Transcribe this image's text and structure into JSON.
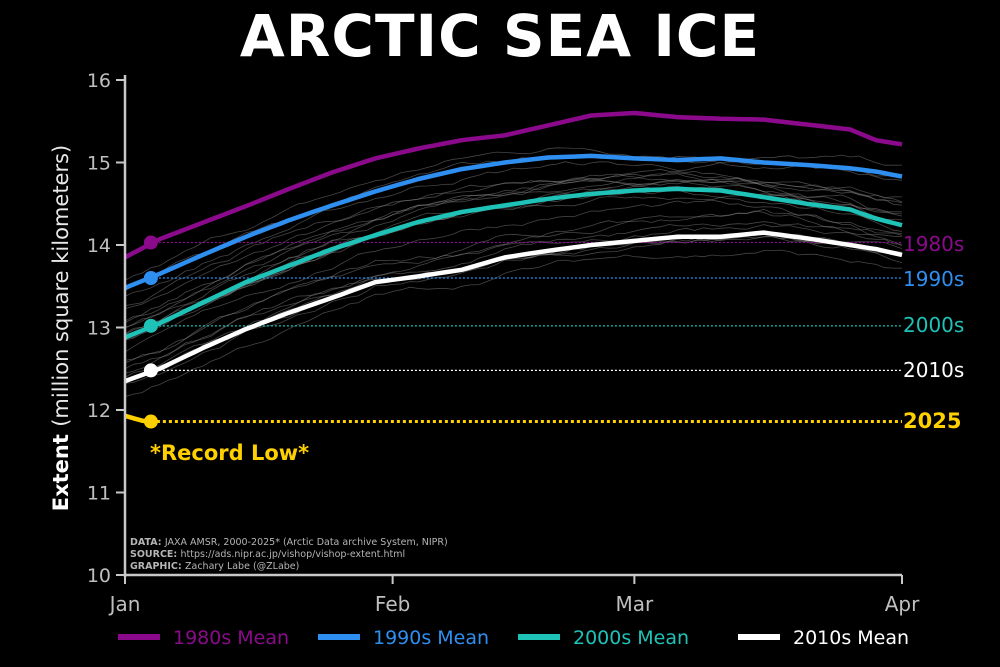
{
  "title": "ARCTIC SEA ICE",
  "chart_data": {
    "type": "line",
    "title": "ARCTIC SEA ICE",
    "ylabel_bold": "Extent",
    "ylabel_rest": "(million square kilometers)",
    "ylim": [
      10,
      16
    ],
    "yticks": [
      10,
      11,
      12,
      13,
      14,
      15,
      16
    ],
    "xlim": [
      1,
      91
    ],
    "xticks": [
      {
        "day": 1,
        "label": "Jan"
      },
      {
        "day": 32,
        "label": "Feb"
      },
      {
        "day": 60,
        "label": "Mar"
      },
      {
        "day": 91,
        "label": "Apr"
      }
    ],
    "series": [
      {
        "name": "1980s Mean",
        "end_label": "1980s",
        "color": "#8b0a8b",
        "ref_value": 14.03,
        "marker_day": 4,
        "x": [
          1,
          5,
          10,
          15,
          20,
          25,
          30,
          35,
          40,
          45,
          50,
          55,
          60,
          65,
          70,
          75,
          80,
          85,
          88,
          91
        ],
        "y": [
          13.85,
          14.07,
          14.27,
          14.47,
          14.68,
          14.88,
          15.05,
          15.17,
          15.27,
          15.33,
          15.45,
          15.57,
          15.6,
          15.55,
          15.53,
          15.52,
          15.46,
          15.4,
          15.27,
          15.22
        ]
      },
      {
        "name": "1990s Mean",
        "end_label": "1990s",
        "color": "#2f8ff0",
        "ref_value": 13.6,
        "marker_day": 4,
        "x": [
          1,
          5,
          10,
          15,
          20,
          25,
          30,
          35,
          40,
          45,
          50,
          55,
          60,
          65,
          70,
          75,
          80,
          85,
          88,
          91
        ],
        "y": [
          13.48,
          13.65,
          13.88,
          14.1,
          14.3,
          14.48,
          14.65,
          14.8,
          14.92,
          15.0,
          15.06,
          15.08,
          15.05,
          15.03,
          15.05,
          15.0,
          14.97,
          14.93,
          14.89,
          14.83
        ]
      },
      {
        "name": "2000s Mean",
        "end_label": "2000s",
        "color": "#1ec2b7",
        "ref_value": 13.02,
        "marker_day": 4,
        "x": [
          1,
          5,
          10,
          15,
          20,
          25,
          30,
          35,
          40,
          45,
          50,
          55,
          60,
          65,
          70,
          75,
          80,
          85,
          88,
          91
        ],
        "y": [
          12.88,
          13.05,
          13.3,
          13.55,
          13.75,
          13.95,
          14.12,
          14.28,
          14.4,
          14.48,
          14.56,
          14.62,
          14.66,
          14.68,
          14.66,
          14.58,
          14.5,
          14.43,
          14.32,
          14.24
        ]
      },
      {
        "name": "2010s Mean",
        "end_label": "2010s",
        "color": "#ffffff",
        "ref_value": 12.48,
        "marker_day": 4,
        "x": [
          1,
          5,
          10,
          15,
          20,
          25,
          30,
          35,
          40,
          45,
          50,
          55,
          60,
          65,
          70,
          75,
          80,
          85,
          88,
          91
        ],
        "y": [
          12.35,
          12.5,
          12.75,
          12.98,
          13.18,
          13.36,
          13.55,
          13.62,
          13.7,
          13.85,
          13.93,
          14.0,
          14.05,
          14.1,
          14.1,
          14.15,
          14.08,
          14.0,
          13.95,
          13.88
        ]
      },
      {
        "name": "2025",
        "end_label": "2025",
        "color": "#ffd000",
        "ref_value": 11.86,
        "marker_day": 4,
        "x": [
          1,
          2,
          3,
          4
        ],
        "y": [
          11.93,
          11.9,
          11.87,
          11.86
        ]
      }
    ],
    "annotation": "*Record Low*",
    "credits": {
      "data_label": "DATA:",
      "data_text": "JAXA AMSR, 2000-2025* (Arctic Data archive System, NIPR)",
      "source_label": "SOURCE:",
      "source_text": "https://ads.nipr.ac.jp/vishop/vishop-extent.html",
      "graphic_label": "GRAPHIC:",
      "graphic_text": "Zachary Labe (@ZLabe)"
    }
  }
}
